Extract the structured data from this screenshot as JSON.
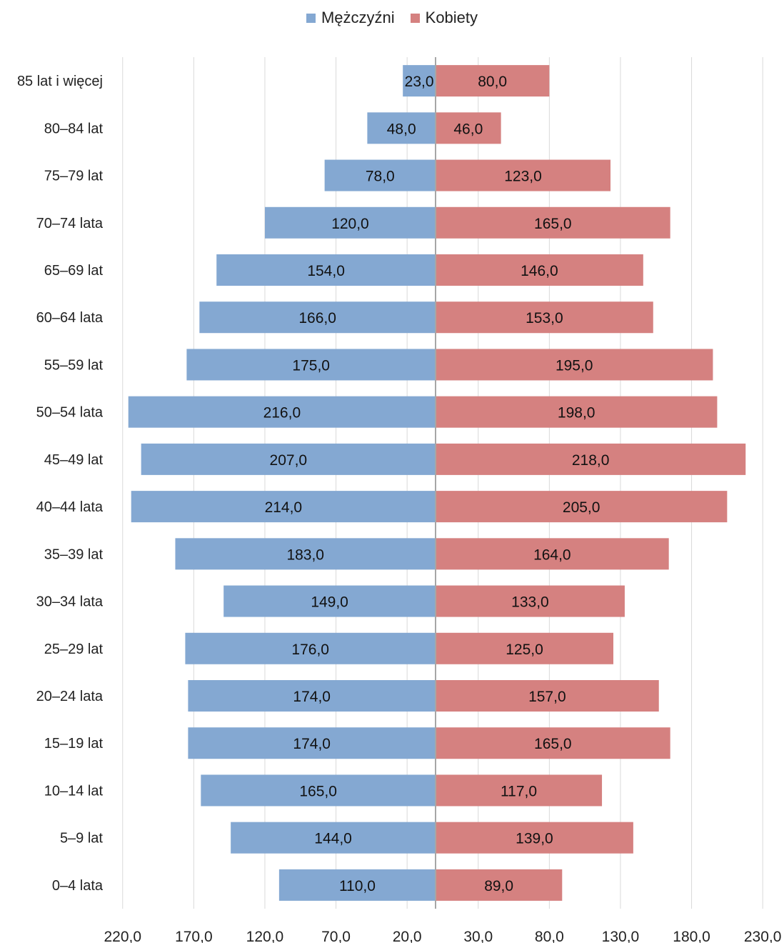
{
  "chart_data": {
    "type": "bar",
    "orientation": "horizontal-pyramid",
    "categories": [
      "85 lat i więcej",
      "80–84 lat",
      "75–79 lat",
      "70–74 lata",
      "65–69 lat",
      "60–64 lata",
      "55–59 lat",
      "50–54 lata",
      "45–49 lat",
      "40–44 lata",
      "35–39 lat",
      "30–34 lata",
      "25–29 lat",
      "20–24 lata",
      "15–19 lat",
      "10–14 lat",
      "5–9 lat",
      "0–4 lata"
    ],
    "series": [
      {
        "name": "Mężczyźni",
        "color": "#84a8d2",
        "values": [
          23,
          48,
          78,
          120,
          154,
          166,
          175,
          216,
          207,
          214,
          183,
          149,
          176,
          174,
          174,
          165,
          144,
          110
        ],
        "labels": [
          "23,0",
          "48,0",
          "78,0",
          "120,0",
          "154,0",
          "166,0",
          "175,0",
          "216,0",
          "207,0",
          "214,0",
          "183,0",
          "149,0",
          "176,0",
          "174,0",
          "174,0",
          "165,0",
          "144,0",
          "110,0"
        ]
      },
      {
        "name": "Kobiety",
        "color": "#d58180",
        "values": [
          80,
          46,
          123,
          165,
          146,
          153,
          195,
          198,
          218,
          205,
          164,
          133,
          125,
          157,
          165,
          117,
          139,
          89
        ],
        "labels": [
          "80,0",
          "46,0",
          "123,0",
          "165,0",
          "146,0",
          "153,0",
          "195,0",
          "198,0",
          "218,0",
          "205,0",
          "164,0",
          "133,0",
          "125,0",
          "157,0",
          "165,0",
          "117,0",
          "139,0",
          "89,0"
        ]
      }
    ],
    "x_ticks": [
      -220,
      -170,
      -120,
      -70,
      -20,
      30,
      80,
      130,
      180,
      230
    ],
    "x_tick_labels": [
      "220,0",
      "170,0",
      "120,0",
      "70,0",
      "20,0",
      "30,0",
      "80,0",
      "130,0",
      "180,0",
      "230,0"
    ],
    "xlim": [
      -220,
      230
    ],
    "grid": true,
    "legend_position": "top-center"
  }
}
